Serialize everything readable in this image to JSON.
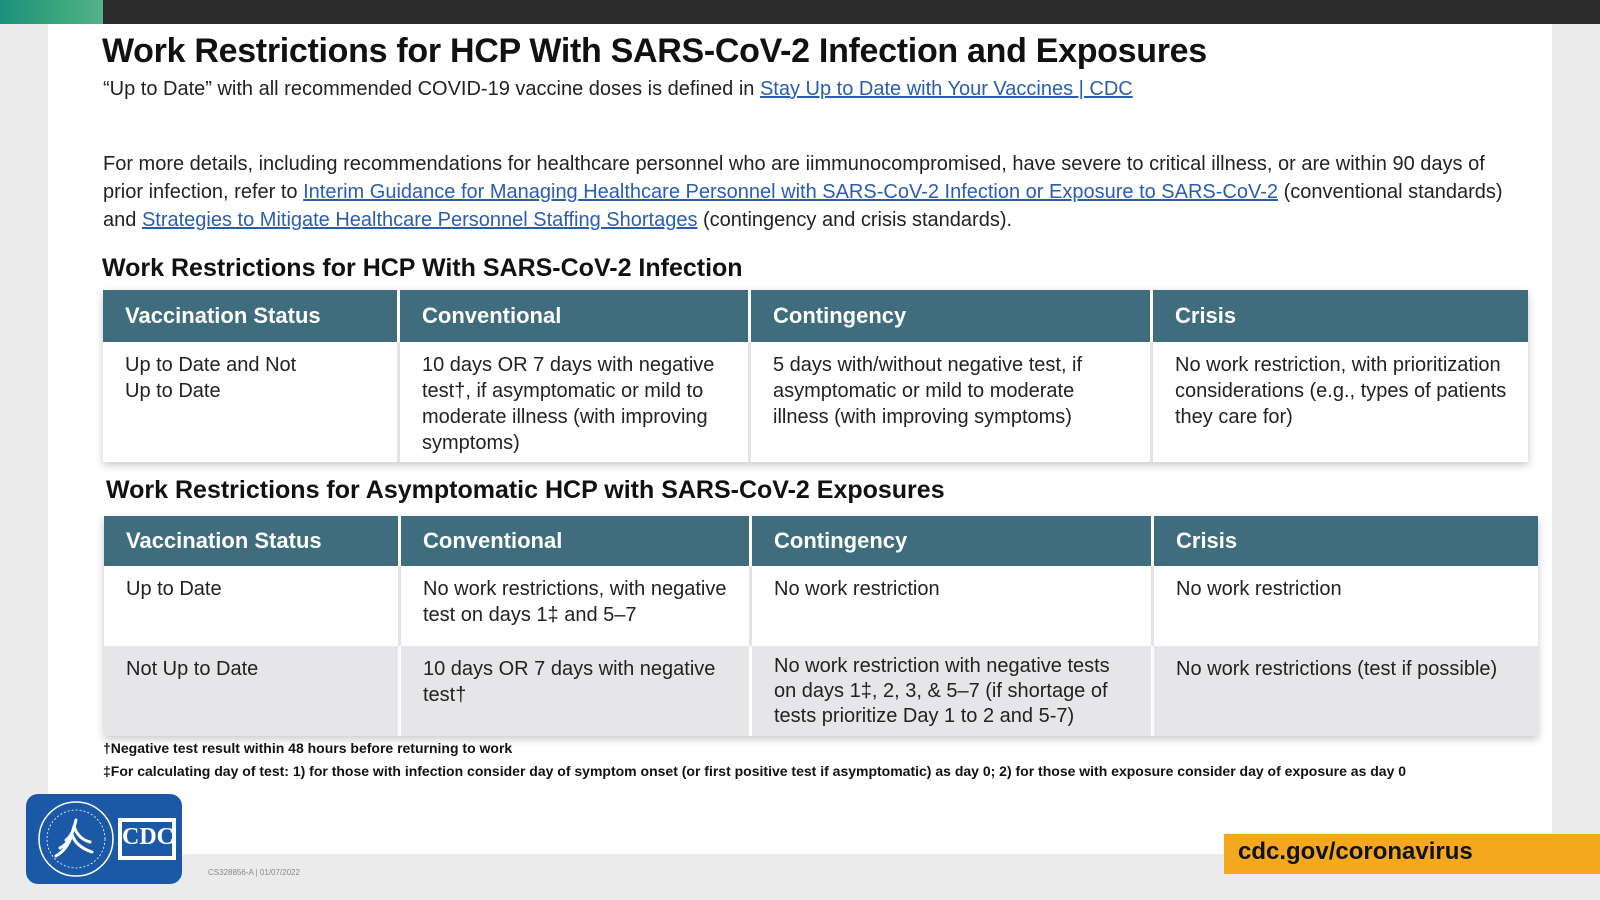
{
  "title": "Work Restrictions for HCP With SARS-CoV-2 Infection and Exposures",
  "subtitle": {
    "text": "“Up to Date” with all recommended COVID-19 vaccine doses is defined in ",
    "link": "Stay Up to Date with Your Vaccines | CDC"
  },
  "details": {
    "part1": "For more details, including recommendations for healthcare personnel who are iimmunocompromised, have severe to critical illness, or are within 90 days of prior infection, refer to ",
    "link1": "Interim Guidance for Managing Healthcare Personnel with SARS-CoV-2 Infection or Exposure to SARS-CoV-2",
    "part2": " (conventional standards) and ",
    "link2": "Strategies to Mitigate Healthcare Personnel Staffing Shortages",
    "part3": " (contingency and crisis standards)."
  },
  "infection_table": {
    "title": "Work Restrictions for HCP With SARS-CoV-2 Infection",
    "headers": [
      "Vaccination Status",
      "Conventional",
      "Contingency",
      "Crisis"
    ],
    "rows": [
      {
        "status": "Up to Date and Not Up to Date",
        "conventional": "10 days OR 7 days with negative test†, if asymptomatic or mild to moderate illness (with improving symptoms)",
        "contingency": "5 days with/without negative test, if asymptomatic or mild to moderate illness  (with improving symptoms)",
        "crisis": "No work restriction, with prioritization considerations (e.g., types of patients they care for)"
      }
    ]
  },
  "exposure_table": {
    "title": "Work Restrictions for Asymptomatic HCP with SARS-CoV-2 Exposures",
    "headers": [
      "Vaccination Status",
      "Conventional",
      "Contingency",
      "Crisis"
    ],
    "rows": [
      {
        "status": "Up to Date",
        "conventional": "No work restrictions, with negative test on days 1‡ and 5–7",
        "contingency": "No work restriction",
        "crisis": "No work restriction"
      },
      {
        "status": "Not Up to Date",
        "conventional": "10 days OR 7 days with negative test†",
        "contingency": "No work restriction with negative tests on days 1‡, 2, 3, & 5–7 (if shortage of tests prioritize Day 1 to 2 and 5-7)",
        "crisis": "No work restrictions (test if possible)"
      }
    ]
  },
  "footnotes": [
    "†Negative test result within 48 hours before returning to work",
    "‡For calculating day of test: 1) for those with infection consider day of symptom onset (or first positive test if asymptomatic) as day 0; 2) for those with exposure consider day of exposure as day 0"
  ],
  "logo": {
    "text": "CDC",
    "icon": "hhs-eagle-icon"
  },
  "footer": {
    "url": "cdc.gov/coronavirus",
    "code": "CS328856-A  |  01/07/2022"
  },
  "colors": {
    "header_bg": "#3f6d7e",
    "link": "#2a5db0",
    "footer_bar": "#f4a81d",
    "logo_bg": "#1b58a6",
    "alt_row": "#e6e6e8"
  }
}
